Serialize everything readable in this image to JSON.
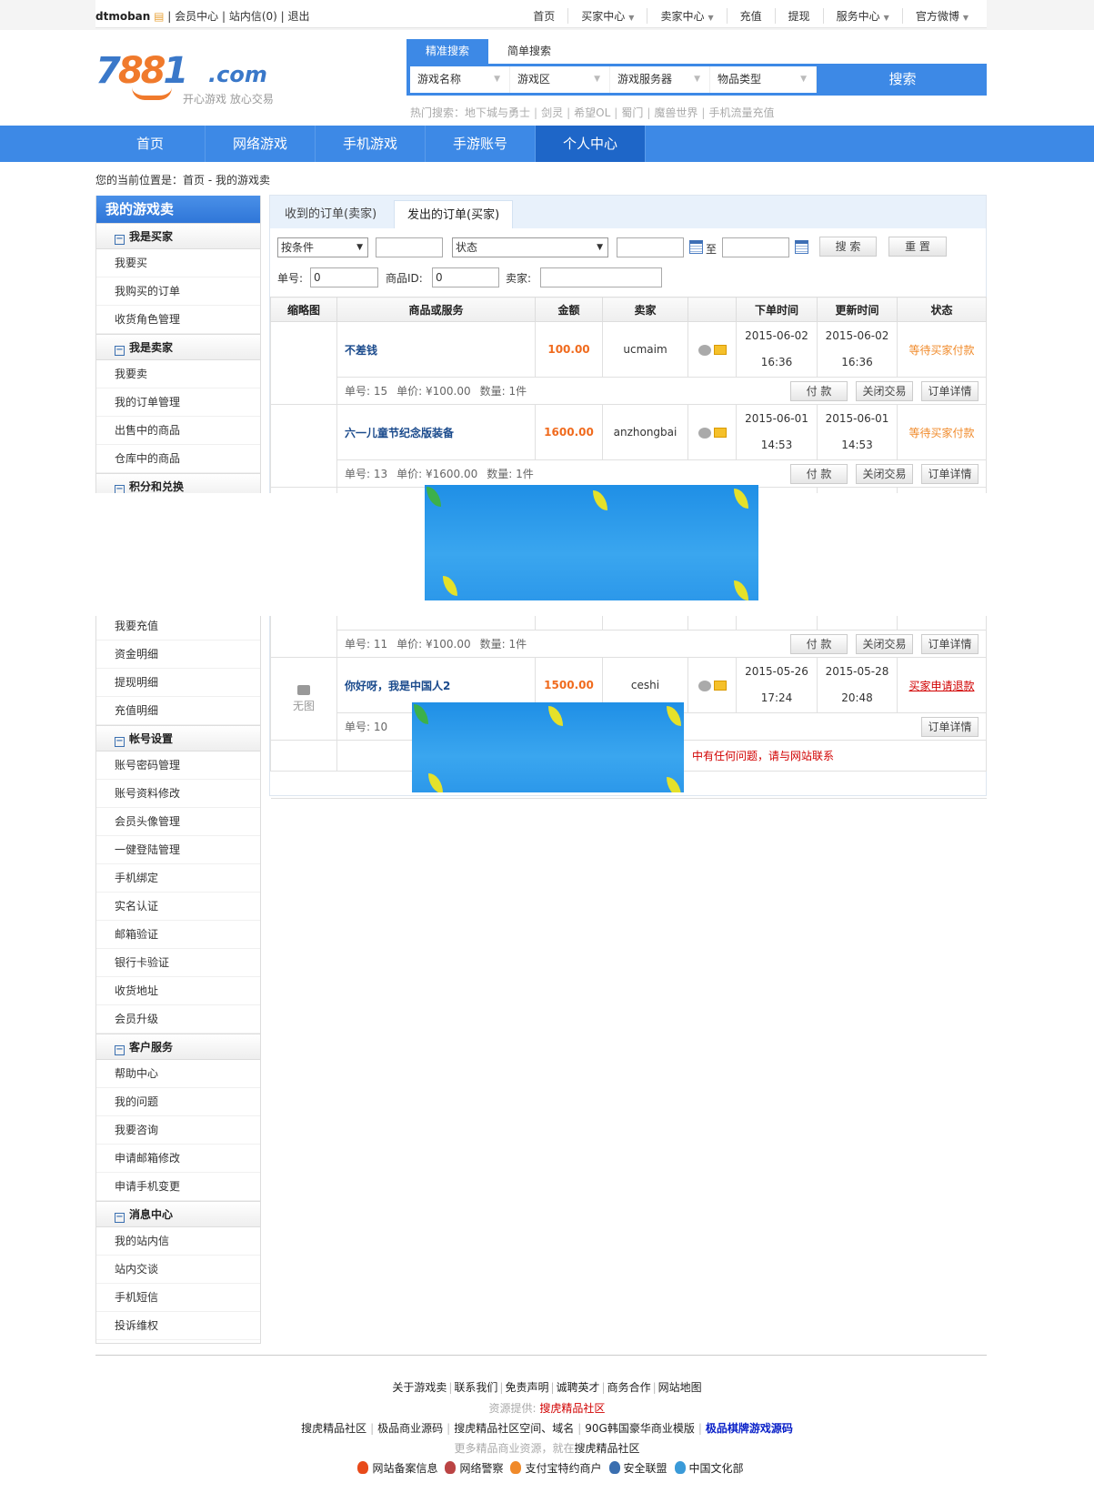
{
  "topbar": {
    "user": "dtmoban",
    "links": [
      "会员中心",
      "站内信(0)",
      "退出"
    ],
    "nav": [
      {
        "label": "首页",
        "dd": false
      },
      {
        "label": "买家中心",
        "dd": true
      },
      {
        "label": "卖家中心",
        "dd": true
      },
      {
        "label": "充值",
        "dd": false
      },
      {
        "label": "提现",
        "dd": false
      },
      {
        "label": "服务中心",
        "dd": true
      },
      {
        "label": "官方微博",
        "dd": true
      }
    ]
  },
  "logo": {
    "text": "7881.com",
    "slogan": "开心游戏 放心交易"
  },
  "search": {
    "tabs": [
      "精准搜索",
      "简单搜索"
    ],
    "selects": [
      "游戏名称",
      "游戏区",
      "游戏服务器",
      "物品类型"
    ],
    "button": "搜索",
    "hot_label": "热门搜索：",
    "hot": [
      "地下城与勇士",
      "剑灵",
      "希望OL",
      "蜀门",
      "魔兽世界",
      "手机流量充值"
    ]
  },
  "nav": [
    "首页",
    "网络游戏",
    "手机游戏",
    "手游账号",
    "个人中心"
  ],
  "breadcrumb": "您的当前位置是：首页 - 我的游戏卖",
  "sidebar": {
    "title": "我的游戏卖",
    "s1": {
      "title": "我是买家",
      "items": [
        "我要买",
        "我购买的订单",
        "收货角色管理"
      ]
    },
    "s2": {
      "title": "我是卖家",
      "items": [
        "我要卖",
        "我的订单管理",
        "出售中的商品",
        "仓库中的商品"
      ]
    },
    "s3": {
      "title": "积分和兑换"
    },
    "s4": {
      "items": [
        "我要充值",
        "资金明细",
        "提现明细",
        "充值明细"
      ]
    },
    "s5": {
      "title": "帐号设置",
      "items": [
        "账号密码管理",
        "账号资料修改",
        "会员头像管理",
        "一健登陆管理",
        "手机绑定",
        "实名认证",
        "邮箱验证",
        "银行卡验证",
        "收货地址",
        "会员升级"
      ]
    },
    "s6": {
      "title": "客户服务",
      "items": [
        "帮助中心",
        "我的问题",
        "我要咨询",
        "申请邮箱修改",
        "申请手机变更"
      ]
    },
    "s7": {
      "title": "消息中心",
      "items": [
        "我的站内信",
        "站内交谈",
        "手机短信",
        "投诉维权"
      ]
    }
  },
  "main": {
    "tabs": [
      "收到的订单(卖家)",
      "发出的订单(买家)"
    ],
    "filter": {
      "cond": "按条件",
      "status": "状态",
      "to": "至",
      "search": "搜 索",
      "reset": "重 置",
      "order_no_label": "单号:",
      "order_no": "0",
      "goods_id_label": "商品ID:",
      "goods_id": "0",
      "seller_label": "卖家:"
    },
    "columns": [
      "缩略图",
      "商品或服务",
      "金额",
      "卖家",
      "",
      "下单时间",
      "更新时间",
      "状态"
    ],
    "orders": [
      {
        "name": "不差钱",
        "amount": "100.00",
        "seller": "ucmaim",
        "od": "2015-06-02",
        "ot": "16:36",
        "ud": "2015-06-02",
        "ut": "16:36",
        "status": "等待买家付款",
        "no": "单号: 15",
        "price": "单价: ¥100.00",
        "qty": "数量: 1件"
      },
      {
        "name": "六一儿童节纪念版装备",
        "amount": "1600.00",
        "seller": "anzhongbai",
        "od": "2015-06-01",
        "ot": "14:53",
        "ud": "2015-06-01",
        "ut": "14:53",
        "status": "等待买家付款",
        "no": "单号: 13",
        "price": "单价: ¥1600.00",
        "qty": "数量: 1件"
      },
      {
        "no": "单号: 11",
        "price": "单价: ¥100.00",
        "qty": "数量: 1件"
      },
      {
        "thumb": "无图",
        "name": "你好呀，我是中国人2",
        "amount": "1500.00",
        "seller": "ceshi",
        "od": "2015-05-26",
        "ot": "17:24",
        "ud": "2015-05-28",
        "ut": "20:48",
        "status": "买家申请退款",
        "no": "单号: 10"
      }
    ],
    "btn_pay": "付 款",
    "btn_close": "关闭交易",
    "btn_detail": "订单详情",
    "notice": "中有任何问题，请与网站联系"
  },
  "footer": {
    "links": [
      "关于游戏卖",
      "联系我们",
      "免责声明",
      "诚聘英才",
      "商务合作",
      "网站地图"
    ],
    "source_label": "资源提供:",
    "source": "搜虎精品社区",
    "links2": [
      "搜虎精品社区",
      "极品商业源码",
      "搜虎精品社区空间、域名",
      "90G韩国豪华商业模版"
    ],
    "link2_hl": "极品棋牌游戏源码",
    "more": "更多精品商业资源，就在",
    "more_link": "搜虎精品社区",
    "badges": [
      "网站备案信息",
      "网络警察",
      "支付宝特约商户",
      "安全联盟",
      "中国文化部"
    ]
  },
  "colors": {
    "brand_blue": "#3d89e6",
    "nav_active": "#1e66c8",
    "orange": "#f07a2c",
    "red": "#d10000"
  }
}
